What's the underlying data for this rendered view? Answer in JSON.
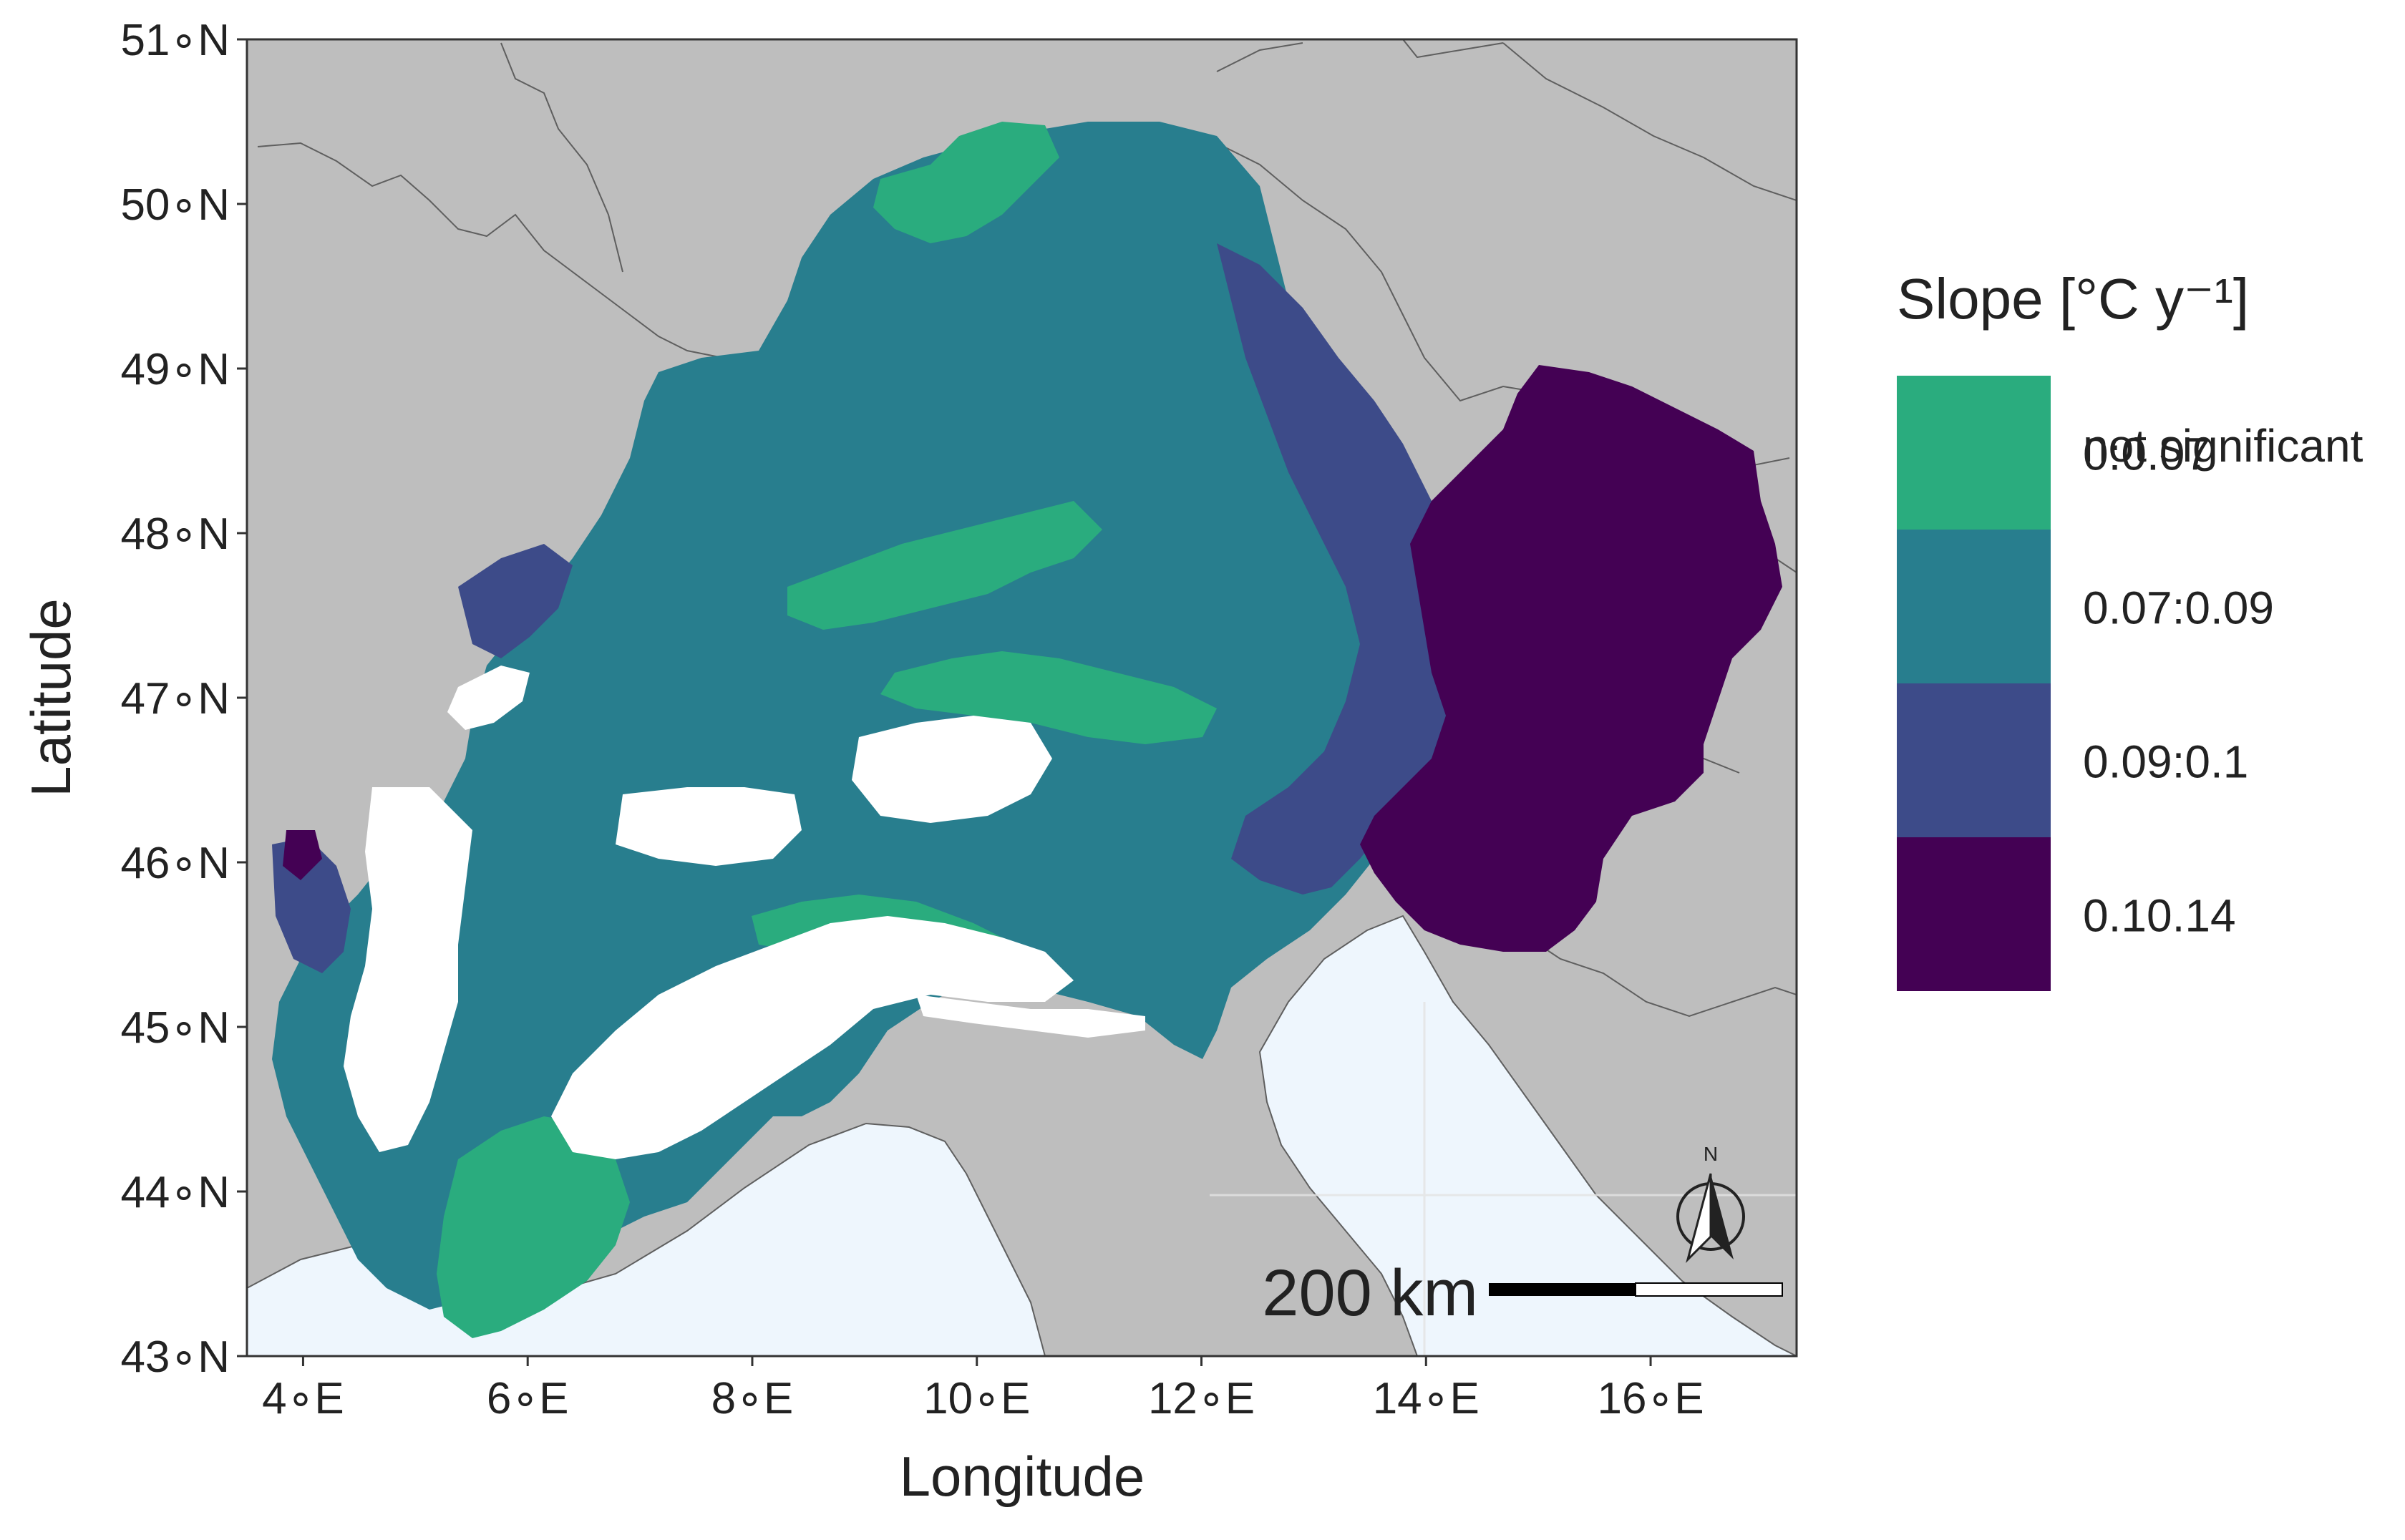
{
  "map": {
    "xlabel": "Longitude",
    "ylabel": "Latitude",
    "x_extent": [
      3.5,
      17.3
    ],
    "y_extent": [
      43.0,
      51.0
    ],
    "x_ticks": [
      {
        "value": 4,
        "label": "4∘E"
      },
      {
        "value": 6,
        "label": "6∘E"
      },
      {
        "value": 8,
        "label": "8∘E"
      },
      {
        "value": 10,
        "label": "10∘E"
      },
      {
        "value": 12,
        "label": "12∘E"
      },
      {
        "value": 14,
        "label": "14∘E"
      },
      {
        "value": 16,
        "label": "16∘E"
      }
    ],
    "y_ticks": [
      {
        "value": 43,
        "label": "43∘N"
      },
      {
        "value": 44,
        "label": "44∘N"
      },
      {
        "value": 45,
        "label": "45∘N"
      },
      {
        "value": 46,
        "label": "46∘N"
      },
      {
        "value": 47,
        "label": "47∘N"
      },
      {
        "value": 48,
        "label": "48∘N"
      },
      {
        "value": 49,
        "label": "49∘N"
      },
      {
        "value": 50,
        "label": "50∘N"
      },
      {
        "value": 51,
        "label": "51∘N"
      }
    ],
    "scale_bar_label": "200 km",
    "north_arrow_label": "N",
    "colors": {
      "land": "#bebebe",
      "sea": "#eef6fd",
      "border": "#5f5f5f",
      "not_significant": "#ffffff"
    }
  },
  "legend": {
    "title": "Slope [°C y⁻¹]",
    "items": [
      {
        "label": "not significant",
        "color": "#ffffff"
      },
      {
        "label": "0:0.07",
        "color": "#2aac7e"
      },
      {
        "label": "0.07:0.09",
        "color": "#287e8e"
      },
      {
        "label": "0.09:0.1",
        "color": "#3d4b89"
      },
      {
        "label": "0.10.14",
        "color": "#440154"
      }
    ]
  }
}
